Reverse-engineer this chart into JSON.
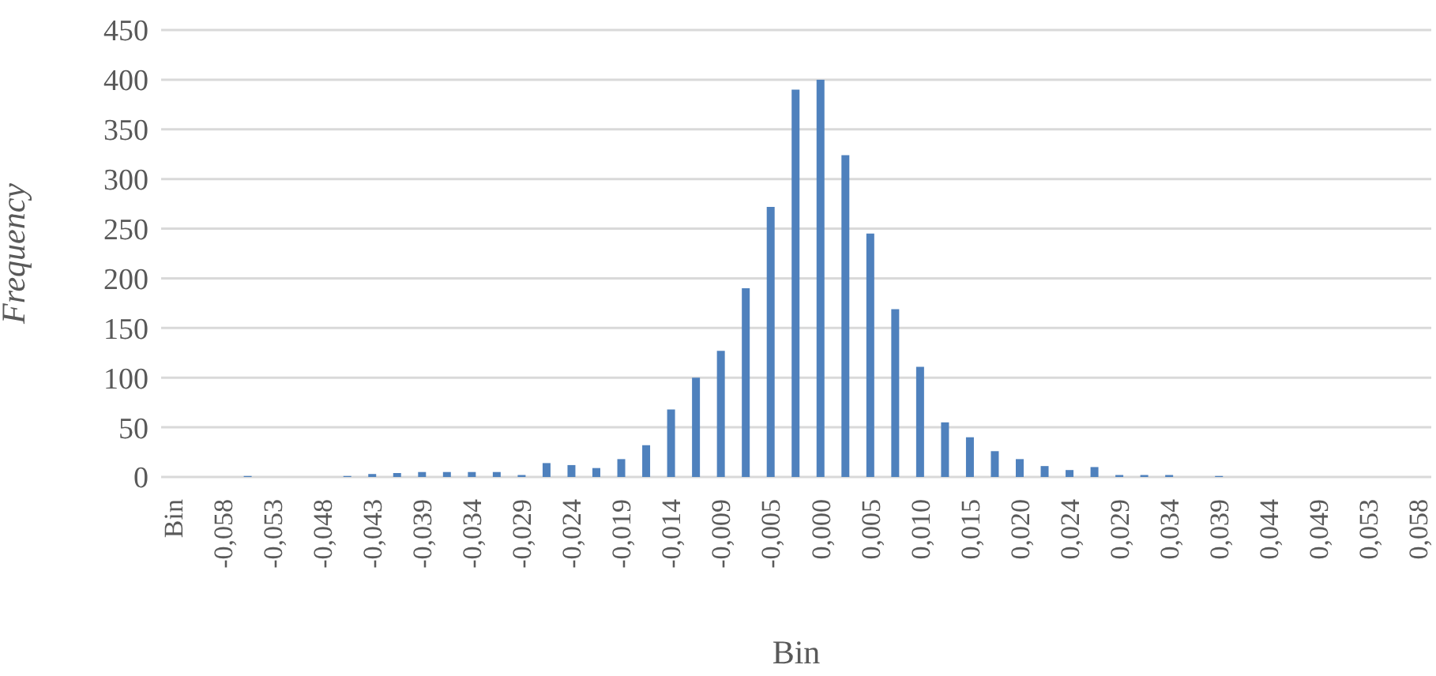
{
  "chart_data": {
    "type": "bar",
    "xlabel": "Bin",
    "ylabel": "Frequency",
    "categories": [
      "Bin",
      null,
      "-0,058",
      null,
      "-0,053",
      null,
      "-0,048",
      null,
      "-0,043",
      null,
      "-0,039",
      null,
      "-0,034",
      null,
      "-0,029",
      null,
      "-0,024",
      null,
      "-0,019",
      null,
      "-0,014",
      null,
      "-0,009",
      null,
      "-0,005",
      null,
      "0,000",
      null,
      "0,005",
      null,
      "0,010",
      null,
      "0,015",
      null,
      "0,020",
      null,
      "0,024",
      null,
      "0,029",
      null,
      "0,034",
      null,
      "0,039",
      null,
      "0,044",
      null,
      "0,049",
      null,
      "0,053",
      null,
      "0,058"
    ],
    "values": [
      0,
      0,
      0,
      1,
      0,
      0,
      0,
      1,
      3,
      4,
      5,
      5,
      5,
      5,
      2,
      14,
      12,
      9,
      18,
      32,
      68,
      100,
      127,
      190,
      272,
      390,
      400,
      324,
      245,
      169,
      111,
      55,
      40,
      26,
      18,
      11,
      7,
      10,
      2,
      2,
      2,
      0,
      1,
      0,
      0,
      0,
      0,
      0,
      0,
      0,
      0
    ],
    "color": "#4f81bd",
    "ylim": [
      0,
      450
    ],
    "yticks": [
      0,
      50,
      100,
      150,
      200,
      250,
      300,
      350,
      400,
      450
    ],
    "grid": "y"
  }
}
